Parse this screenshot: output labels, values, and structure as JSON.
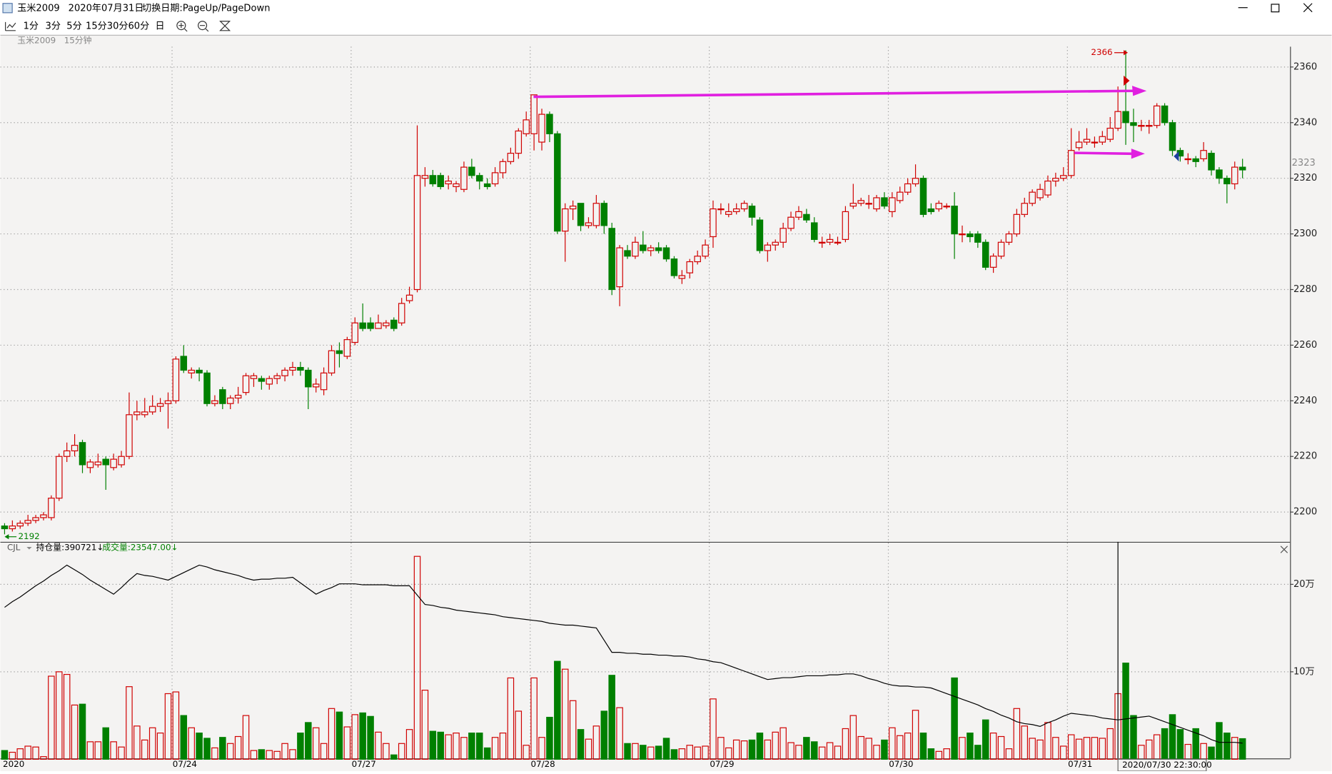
{
  "window": {
    "symbol": "玉米2009",
    "date": "2020年07月31日",
    "hint": "切换日期:PageUp/PageDown"
  },
  "toolbar": {
    "periods": [
      "1分",
      "3分",
      "5分",
      "15分",
      "30分",
      "60分",
      "日"
    ]
  },
  "chart_header": {
    "symbol": "玉米2009",
    "period": "15分钟"
  },
  "chart_data": {
    "type": "candlestick",
    "categories": [
      "2020",
      null,
      null,
      null,
      null,
      null,
      null,
      null,
      null,
      null,
      null,
      null,
      null,
      null,
      null,
      null,
      null,
      null,
      null,
      null,
      null,
      null,
      "07/24",
      null,
      null,
      null,
      null,
      null,
      null,
      null,
      null,
      null,
      null,
      null,
      null,
      null,
      null,
      null,
      null,
      null,
      null,
      null,
      null,
      null,
      null,
      "07/27",
      null,
      null,
      null,
      null,
      null,
      null,
      null,
      null,
      null,
      null,
      null,
      null,
      null,
      null,
      null,
      null,
      null,
      null,
      null,
      null,
      null,
      null,
      "07/28",
      null,
      null,
      null,
      null,
      null,
      null,
      null,
      null,
      null,
      null,
      null,
      null,
      null,
      null,
      null,
      null,
      null,
      null,
      null,
      null,
      null,
      null,
      "07/29",
      null,
      null,
      null,
      null,
      null,
      null,
      null,
      null,
      null,
      null,
      null,
      null,
      null,
      null,
      null,
      null,
      null,
      null,
      null,
      null,
      null,
      null,
      "07/30",
      null,
      null,
      null,
      null,
      null,
      null,
      null,
      null,
      null,
      null,
      null,
      null,
      null,
      null,
      null,
      null,
      null,
      null,
      null,
      null,
      null,
      null,
      "07/31",
      null,
      null,
      null,
      null,
      null,
      null,
      null,
      null,
      null,
      null,
      null,
      null,
      null,
      null,
      null,
      null,
      null,
      null,
      null,
      null,
      null,
      null
    ],
    "open": [
      2195,
      2194,
      2195,
      2196,
      2197,
      2198,
      2198,
      2205,
      2220,
      2222,
      2225,
      2216,
      2217,
      2219,
      2216,
      2217,
      2220,
      2235,
      2235,
      2236,
      2238,
      2239,
      2240,
      2256,
      2250,
      2251,
      2250,
      2239,
      2244,
      2239,
      2241,
      2243,
      2248,
      2248,
      2246,
      2248,
      2249,
      2251,
      2252,
      2251,
      2245,
      2244,
      2250,
      2258,
      2256,
      2261,
      2268,
      2268,
      2266,
      2267,
      2269,
      2268,
      2276,
      2280,
      2320,
      2321,
      2321,
      2318,
      2317,
      2316,
      2324,
      2321,
      2318,
      2318,
      2322,
      2326,
      2329,
      2336,
      2336,
      2333,
      2343,
      2336,
      2301,
      2309,
      2311,
      2303,
      2303,
      2311,
      2302,
      2281,
      2294,
      2292,
      2296,
      2294,
      2295,
      2295,
      2291,
      2284,
      2286,
      2290,
      2292,
      2299,
      2309,
      2307,
      2308,
      2309,
      2310,
      2305,
      2294,
      2296,
      2297,
      2302,
      2306,
      2307,
      2304,
      2297,
      2297,
      2297,
      2298,
      2310,
      2311,
      2311,
      2309,
      2313,
      2308,
      2312,
      2315,
      2318,
      2320,
      2309,
      2309,
      2310,
      2310,
      2300,
      2300,
      2300,
      2297,
      2288,
      2292,
      2297,
      2300,
      2307,
      2311,
      2313,
      2314,
      2319,
      2320,
      2321,
      2331,
      2333,
      2333,
      2333,
      2334,
      2338,
      2344,
      2340,
      2339,
      2339,
      2339,
      2346,
      2340,
      2330,
      2327,
      2327,
      2327,
      2329,
      2323,
      2320,
      2318,
      2324
    ],
    "high": [
      2196,
      2197,
      2197,
      2199,
      2199,
      2200,
      2206,
      2221,
      2225,
      2228,
      2226,
      2219,
      2221,
      2220,
      2221,
      2222,
      2243,
      2240,
      2241,
      2242,
      2241,
      2243,
      2256,
      2260,
      2252,
      2252,
      2251,
      2242,
      2245,
      2242,
      2245,
      2250,
      2250,
      2249,
      2249,
      2250,
      2252,
      2254,
      2254,
      2252,
      2248,
      2252,
      2260,
      2261,
      2263,
      2270,
      2275,
      2270,
      2271,
      2269,
      2270,
      2277,
      2281,
      2339,
      2324,
      2323,
      2322,
      2321,
      2319,
      2326,
      2327,
      2322,
      2320,
      2324,
      2327,
      2331,
      2338,
      2344,
      2350,
      2345,
      2344,
      2337,
      2311,
      2312,
      2311,
      2306,
      2314,
      2312,
      2304,
      2296,
      2296,
      2299,
      2301,
      2296,
      2297,
      2296,
      2292,
      2287,
      2291,
      2294,
      2298,
      2312,
      2311,
      2311,
      2311,
      2312,
      2311,
      2306,
      2297,
      2298,
      2304,
      2308,
      2310,
      2309,
      2306,
      2299,
      2300,
      2299,
      2310,
      2318,
      2313,
      2314,
      2314,
      2315,
      2315,
      2317,
      2320,
      2325,
      2321,
      2311,
      2312,
      2311,
      2315,
      2303,
      2301,
      2301,
      2298,
      2293,
      2298,
      2301,
      2309,
      2313,
      2316,
      2318,
      2321,
      2322,
      2324,
      2338,
      2337,
      2338,
      2335,
      2337,
      2342,
      2353,
      2366,
      2345,
      2341,
      2341,
      2347,
      2347,
      2341,
      2331,
      2329,
      2328,
      2333,
      2330,
      2324,
      2321,
      2326,
      2327
    ],
    "low": [
      2192,
      2193,
      2194,
      2195,
      2196,
      2197,
      2197,
      2204,
      2218,
      2220,
      2214,
      2214,
      2216,
      2208,
      2215,
      2216,
      2219,
      2233,
      2234,
      2235,
      2236,
      2230,
      2239,
      2250,
      2248,
      2247,
      2238,
      2238,
      2237,
      2237,
      2239,
      2242,
      2245,
      2244,
      2244,
      2246,
      2247,
      2249,
      2249,
      2237,
      2243,
      2242,
      2249,
      2252,
      2255,
      2260,
      2265,
      2265,
      2266,
      2266,
      2265,
      2267,
      2275,
      2279,
      2317,
      2317,
      2316,
      2316,
      2315,
      2315,
      2320,
      2316,
      2316,
      2317,
      2320,
      2325,
      2327,
      2335,
      2330,
      2330,
      2333,
      2300,
      2290,
      2305,
      2301,
      2302,
      2302,
      2300,
      2278,
      2274,
      2291,
      2291,
      2293,
      2292,
      2293,
      2290,
      2284,
      2282,
      2284,
      2289,
      2291,
      2295,
      2307,
      2306,
      2307,
      2308,
      2303,
      2293,
      2290,
      2294,
      2295,
      2301,
      2305,
      2304,
      2297,
      2295,
      2296,
      2296,
      2297,
      2309,
      2310,
      2309,
      2308,
      2309,
      2306,
      2311,
      2314,
      2317,
      2306,
      2307,
      2308,
      2309,
      2291,
      2297,
      2297,
      2295,
      2287,
      2286,
      2291,
      2296,
      2299,
      2306,
      2310,
      2312,
      2313,
      2317,
      2319,
      2320,
      2330,
      2332,
      2331,
      2332,
      2333,
      2337,
      2332,
      2333,
      2337,
      2336,
      2338,
      2339,
      2328,
      2326,
      2325,
      2324,
      2326,
      2321,
      2318,
      2311,
      2316,
      2320
    ],
    "close": [
      2194,
      2195,
      2196,
      2197,
      2198,
      2199,
      2205,
      2220,
      2222,
      2224,
      2217,
      2218,
      2218,
      2217,
      2219,
      2220,
      2235,
      2236,
      2236,
      2238,
      2239,
      2240,
      2255,
      2251,
      2251,
      2250,
      2239,
      2240,
      2239,
      2241,
      2242,
      2249,
      2249,
      2247,
      2248,
      2249,
      2251,
      2252,
      2251,
      2245,
      2246,
      2250,
      2258,
      2257,
      2262,
      2268,
      2266,
      2266,
      2268,
      2268,
      2266,
      2275,
      2278,
      2321,
      2321,
      2318,
      2317,
      2319,
      2318,
      2324,
      2321,
      2319,
      2317,
      2322,
      2326,
      2329,
      2337,
      2341,
      2350,
      2343,
      2336,
      2301,
      2309,
      2310,
      2303,
      2304,
      2311,
      2303,
      2280,
      2295,
      2292,
      2297,
      2294,
      2295,
      2294,
      2291,
      2285,
      2285,
      2290,
      2292,
      2296,
      2309,
      2309,
      2308,
      2309,
      2311,
      2306,
      2294,
      2296,
      2297,
      2302,
      2306,
      2308,
      2305,
      2298,
      2297,
      2298,
      2297,
      2308,
      2311,
      2312,
      2311,
      2313,
      2310,
      2313,
      2315,
      2318,
      2320,
      2307,
      2308,
      2311,
      2310,
      2300,
      2300,
      2299,
      2297,
      2288,
      2292,
      2297,
      2300,
      2307,
      2311,
      2315,
      2316,
      2319,
      2320,
      2321,
      2330,
      2333,
      2334,
      2333,
      2335,
      2338,
      2344,
      2340,
      2339,
      2339,
      2339,
      2346,
      2340,
      2330,
      2328,
      2327,
      2326,
      2330,
      2323,
      2320,
      2318,
      2324,
      2323
    ],
    "up_color": "#d00000",
    "down_color": "#008000",
    "ylim": [
      2189.6,
      2367.3
    ],
    "yticks": [
      2200,
      2220,
      2240,
      2260,
      2280,
      2300,
      2320,
      2340,
      2360
    ],
    "grid": true,
    "indicator_name": "CJL",
    "oi_label": "持仓量:390721↓",
    "volume_label": "成交量:23547.00↓",
    "volume": [
      10000,
      8000,
      12000,
      15000,
      14000,
      3000,
      95000,
      100000,
      97000,
      62000,
      63000,
      20000,
      20000,
      36000,
      20000,
      14000,
      83000,
      38000,
      22000,
      36000,
      30000,
      75000,
      77000,
      50000,
      36000,
      30000,
      24000,
      13000,
      25000,
      18000,
      26000,
      50000,
      10000,
      11000,
      10000,
      9000,
      18000,
      11000,
      30000,
      42000,
      36000,
      18000,
      58000,
      54000,
      37000,
      51000,
      53000,
      49000,
      31000,
      18000,
      5000,
      18000,
      34000,
      232000,
      79000,
      32000,
      31000,
      28000,
      30000,
      25000,
      30000,
      30000,
      13000,
      25000,
      30000,
      93000,
      55000,
      16000,
      93000,
      25000,
      48000,
      112000,
      103000,
      67000,
      34000,
      23000,
      38000,
      55000,
      96000,
      59000,
      18000,
      18000,
      16000,
      14000,
      15000,
      24000,
      11000,
      12000,
      16000,
      14000,
      15000,
      69000,
      25000,
      13000,
      22000,
      21000,
      22000,
      30000,
      22000,
      31000,
      36000,
      19000,
      16000,
      25000,
      20000,
      14000,
      19000,
      15000,
      35000,
      50000,
      26000,
      24000,
      16000,
      22000,
      36000,
      27000,
      30000,
      56000,
      30000,
      12000,
      9000,
      12000,
      93000,
      25000,
      30000,
      16000,
      45000,
      30000,
      26000,
      12000,
      58000,
      38000,
      24000,
      22000,
      42000,
      25000,
      15000,
      28000,
      23000,
      25000,
      25000,
      24000,
      35000,
      75000,
      110000,
      50000,
      16000,
      22000,
      28000,
      35000,
      51000,
      34000,
      17000,
      35000,
      18000,
      14000,
      42000,
      30000,
      25000,
      23547
    ],
    "volume_ylim": [
      0,
      235000
    ],
    "volume_yticks": [
      {
        "value": 100000,
        "label": "10万"
      },
      {
        "value": 200000,
        "label": "20万"
      }
    ],
    "open_interest": [
      405200,
      405800,
      406300,
      406900,
      407500,
      408000,
      408600,
      409100,
      409700,
      409200,
      408700,
      408100,
      407600,
      407100,
      406600,
      407300,
      408100,
      408800,
      408600,
      408500,
      408300,
      408100,
      408500,
      408900,
      409300,
      409700,
      409500,
      409200,
      409000,
      408800,
      408600,
      408300,
      408100,
      408200,
      408200,
      408300,
      408300,
      408400,
      407800,
      407200,
      406600,
      407000,
      407300,
      407700,
      407700,
      407700,
      407600,
      407600,
      407600,
      407600,
      407500,
      407500,
      407500,
      406500,
      405500,
      405400,
      405200,
      405100,
      404900,
      404800,
      404700,
      404600,
      404500,
      404400,
      404200,
      404100,
      404000,
      403900,
      403800,
      403700,
      403500,
      403400,
      403300,
      403300,
      403200,
      403100,
      403000,
      401700,
      400400,
      400400,
      400300,
      400300,
      400200,
      400200,
      400100,
      400100,
      400000,
      400000,
      399900,
      399700,
      399600,
      399400,
      399300,
      399000,
      398700,
      398400,
      398100,
      397800,
      397500,
      397600,
      397700,
      397700,
      397800,
      397900,
      397900,
      397900,
      398000,
      398000,
      398100,
      398100,
      397900,
      397600,
      397400,
      397100,
      396900,
      396800,
      396800,
      396700,
      396700,
      396600,
      396300,
      396000,
      395700,
      395400,
      395100,
      394800,
      394400,
      394100,
      393700,
      393400,
      393000,
      392800,
      392700,
      392500,
      392900,
      393200,
      393600,
      393900,
      393800,
      393700,
      393600,
      393400,
      393300,
      393200,
      393300,
      393400,
      393500,
      393600,
      393300,
      393000,
      392700,
      392400,
      392100,
      391800,
      391500,
      391100,
      390800,
      390800,
      390800,
      390721
    ],
    "oi_ylim": [
      389000,
      412000
    ],
    "oi_color": "#000000",
    "crosshair_label": "2020/07/30 22:30:00"
  }
}
